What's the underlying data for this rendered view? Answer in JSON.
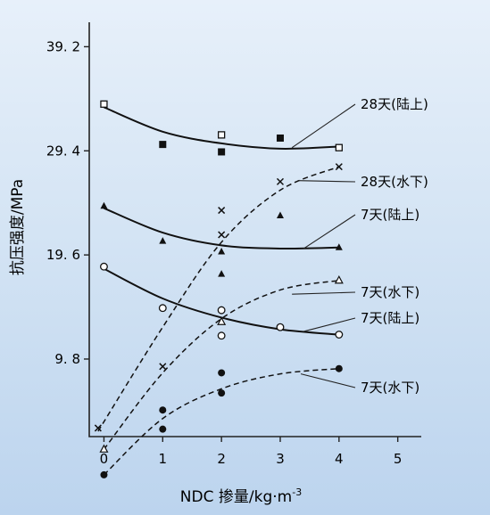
{
  "chart_data": {
    "type": "scatter",
    "xlabel": "NDC 掺量/kg·m",
    "xlabel_sup": "-3",
    "ylabel": "抗压强度/MPa",
    "xlim": [
      -0.25,
      5.4
    ],
    "ylim": [
      2.5,
      41.5
    ],
    "x_ticks": [
      0,
      1,
      2,
      3,
      4,
      5
    ],
    "x_tick_labels": [
      "0",
      "1",
      "2",
      "3",
      "4",
      "5"
    ],
    "y_ticks": [
      9.8,
      19.6,
      29.4,
      39.2
    ],
    "y_tick_labels": [
      "9. 8",
      "19. 6",
      "29. 4",
      "39. 2"
    ],
    "grid": false,
    "series": [
      {
        "name": "28天(陆上)",
        "marker": "open-square",
        "fit": "solid",
        "points": [
          [
            0,
            33.8
          ],
          [
            1,
            30.0
          ],
          [
            2,
            30.9
          ],
          [
            2,
            29.3
          ],
          [
            3,
            30.6
          ],
          [
            4,
            29.7
          ]
        ],
        "curve": [
          [
            0,
            33.5
          ],
          [
            1,
            31.2
          ],
          [
            2,
            30.1
          ],
          [
            3,
            29.6
          ],
          [
            4,
            29.8
          ]
        ]
      },
      {
        "name": "28天(水下)",
        "marker": "x",
        "fit": "dashed",
        "points": [
          [
            -0.1,
            3.3
          ],
          [
            1,
            9.1
          ],
          [
            2,
            23.8
          ],
          [
            2,
            21.5
          ],
          [
            3,
            26.5
          ],
          [
            4,
            27.9
          ]
        ],
        "curve": [
          [
            -0.1,
            3.0
          ],
          [
            1,
            12.8
          ],
          [
            2,
            20.8
          ],
          [
            3,
            25.7
          ],
          [
            4,
            27.9
          ]
        ]
      },
      {
        "name": "7天(陆上)",
        "marker": "filled-triangle",
        "fit": "solid",
        "points": [
          [
            0,
            24.2
          ],
          [
            1,
            20.9
          ],
          [
            2,
            19.9
          ],
          [
            2,
            17.8
          ],
          [
            3,
            23.3
          ],
          [
            4,
            20.3
          ]
        ],
        "curve": [
          [
            0,
            24.0
          ],
          [
            1,
            21.7
          ],
          [
            2,
            20.5
          ],
          [
            3,
            20.2
          ],
          [
            4,
            20.3
          ]
        ]
      },
      {
        "name": "7天(水下)",
        "marker": "open-triangle",
        "fit": "dashed",
        "points": [
          [
            0,
            1.3
          ],
          [
            2,
            13.3
          ],
          [
            4,
            17.2
          ]
        ],
        "curve": [
          [
            0,
            1.3
          ],
          [
            1,
            8.5
          ],
          [
            2,
            13.6
          ],
          [
            3,
            16.3
          ],
          [
            4,
            17.2
          ]
        ]
      },
      {
        "name": "7天(陆上)",
        "marker": "open-circle",
        "fit": "solid",
        "points": [
          [
            0,
            18.5
          ],
          [
            1,
            14.6
          ],
          [
            2,
            14.4
          ],
          [
            2,
            12.0
          ],
          [
            3,
            12.8
          ],
          [
            4,
            12.1
          ]
        ],
        "curve": [
          [
            0,
            18.3
          ],
          [
            1,
            15.5
          ],
          [
            2,
            13.7
          ],
          [
            3,
            12.6
          ],
          [
            4,
            12.1
          ]
        ]
      },
      {
        "name": "7天(水下)",
        "marker": "filled-circle",
        "fit": "dashed",
        "points": [
          [
            0,
            -1.1
          ],
          [
            1,
            3.2
          ],
          [
            1,
            5.0
          ],
          [
            2,
            6.6
          ],
          [
            2,
            8.5
          ],
          [
            4,
            8.9
          ]
        ],
        "curve": [
          [
            0,
            -1.1
          ],
          [
            1,
            4.2
          ],
          [
            2,
            7.0
          ],
          [
            3,
            8.4
          ],
          [
            4,
            8.9
          ]
        ]
      }
    ],
    "annotations": [
      {
        "text": "28天(陆上)",
        "target": [
          3.2,
          29.7
        ]
      },
      {
        "text": "28天(水下)",
        "target": [
          3.3,
          26.6
        ]
      },
      {
        "text": "7天(陆上)",
        "target": [
          3.4,
          20.2
        ]
      },
      {
        "text": "7天(水下)",
        "target": [
          3.2,
          15.9
        ]
      },
      {
        "text": "7天(陆上)",
        "target": [
          3.4,
          12.4
        ]
      },
      {
        "text": "7天(水下)",
        "target": [
          3.35,
          8.4
        ]
      }
    ]
  }
}
